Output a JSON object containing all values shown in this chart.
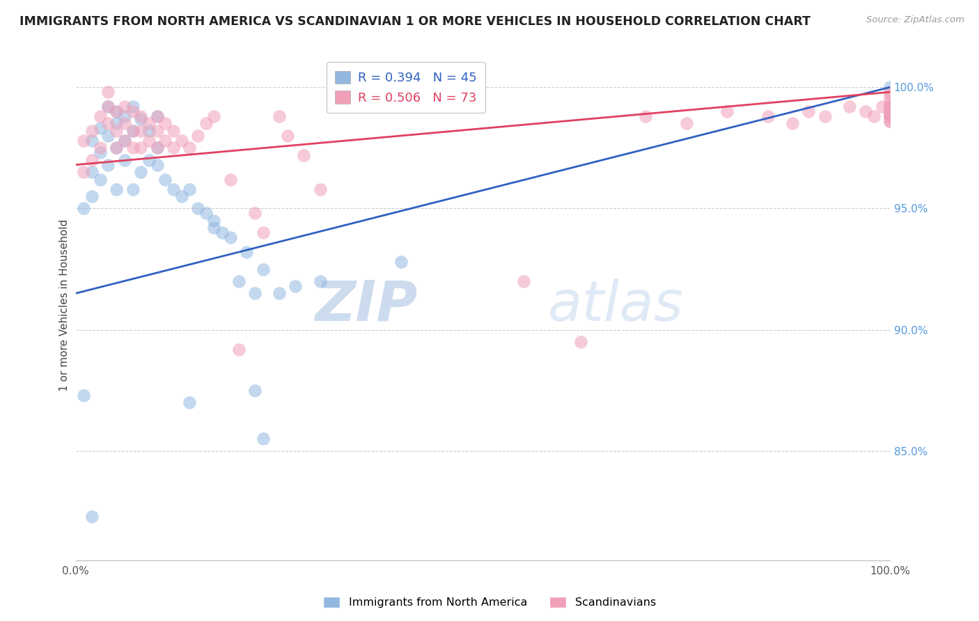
{
  "title": "IMMIGRANTS FROM NORTH AMERICA VS SCANDINAVIAN 1 OR MORE VEHICLES IN HOUSEHOLD CORRELATION CHART",
  "source_text": "Source: ZipAtlas.com",
  "ylabel": "1 or more Vehicles in Household",
  "xlim": [
    0.0,
    1.0
  ],
  "ylim": [
    0.805,
    1.015
  ],
  "yticks": [
    0.85,
    0.9,
    0.95,
    1.0
  ],
  "ytick_labels": [
    "85.0%",
    "90.0%",
    "95.0%",
    "100.0%"
  ],
  "xtick_labels": [
    "0.0%",
    "100.0%"
  ],
  "legend_labels": [
    "Immigrants from North America",
    "Scandinavians"
  ],
  "blue_color": "#92b8e0",
  "pink_color": "#f0a0b8",
  "blue_line_color": "#3060c0",
  "pink_line_color": "#e04060",
  "R_blue": 0.394,
  "N_blue": 45,
  "R_pink": 0.506,
  "N_pink": 73,
  "watermark_zip": "ZIP",
  "watermark_atlas": "atlas",
  "blue_x": [
    0.01,
    0.02,
    0.02,
    0.03,
    0.03,
    0.04,
    0.04,
    0.05,
    0.05,
    0.05,
    0.06,
    0.06,
    0.07,
    0.07,
    0.08,
    0.09,
    0.1,
    0.1,
    0.11,
    0.12,
    0.13,
    0.14,
    0.15,
    0.16,
    0.17,
    0.2,
    0.22,
    0.25,
    0.3,
    0.02,
    0.03,
    0.04,
    0.05,
    0.06,
    0.07,
    0.08,
    0.09,
    0.1,
    0.4,
    0.17,
    0.18,
    0.19,
    0.21,
    0.23,
    0.27
  ],
  "blue_y": [
    0.95,
    0.965,
    0.978,
    0.973,
    0.983,
    0.98,
    0.992,
    0.985,
    0.975,
    0.99,
    0.978,
    0.988,
    0.982,
    0.992,
    0.987,
    0.982,
    0.975,
    0.988,
    0.962,
    0.958,
    0.955,
    0.958,
    0.95,
    0.948,
    0.942,
    0.92,
    0.915,
    0.915,
    0.92,
    0.955,
    0.962,
    0.968,
    0.958,
    0.97,
    0.958,
    0.965,
    0.97,
    0.968,
    0.928,
    0.945,
    0.94,
    0.938,
    0.932,
    0.925,
    0.918
  ],
  "blue_x_outliers": [
    0.01,
    0.02,
    0.14,
    0.22,
    0.23,
    1.0
  ],
  "blue_y_outliers": [
    0.873,
    0.823,
    0.87,
    0.875,
    0.855,
    1.0
  ],
  "pink_x": [
    0.01,
    0.01,
    0.02,
    0.02,
    0.03,
    0.03,
    0.04,
    0.04,
    0.04,
    0.05,
    0.05,
    0.05,
    0.06,
    0.06,
    0.06,
    0.07,
    0.07,
    0.07,
    0.08,
    0.08,
    0.08,
    0.09,
    0.09,
    0.1,
    0.1,
    0.1,
    0.11,
    0.11,
    0.12,
    0.12,
    0.13,
    0.14,
    0.15,
    0.16,
    0.17,
    0.19,
    0.2,
    0.22,
    0.23,
    0.25,
    0.26,
    0.28,
    0.3,
    0.55,
    0.62,
    0.7,
    0.75,
    0.8,
    0.85,
    0.88,
    0.9,
    0.92,
    0.95,
    0.97,
    0.98,
    0.99,
    1.0,
    1.0,
    1.0,
    1.0,
    1.0,
    1.0,
    1.0,
    1.0,
    1.0,
    1.0,
    1.0,
    1.0,
    1.0,
    1.0,
    1.0,
    1.0,
    1.0
  ],
  "pink_y": [
    0.978,
    0.965,
    0.982,
    0.97,
    0.988,
    0.975,
    0.992,
    0.985,
    0.998,
    0.99,
    0.982,
    0.975,
    0.992,
    0.985,
    0.978,
    0.99,
    0.982,
    0.975,
    0.988,
    0.982,
    0.975,
    0.985,
    0.978,
    0.988,
    0.982,
    0.975,
    0.985,
    0.978,
    0.982,
    0.975,
    0.978,
    0.975,
    0.98,
    0.985,
    0.988,
    0.962,
    0.892,
    0.948,
    0.94,
    0.988,
    0.98,
    0.972,
    0.958,
    0.92,
    0.895,
    0.988,
    0.985,
    0.99,
    0.988,
    0.985,
    0.99,
    0.988,
    0.992,
    0.99,
    0.988,
    0.992,
    0.998,
    0.996,
    0.994,
    0.992,
    0.99,
    0.988,
    0.986,
    0.992,
    0.99,
    0.988,
    0.992,
    0.99,
    0.988,
    0.986,
    0.992,
    0.99,
    0.988
  ]
}
